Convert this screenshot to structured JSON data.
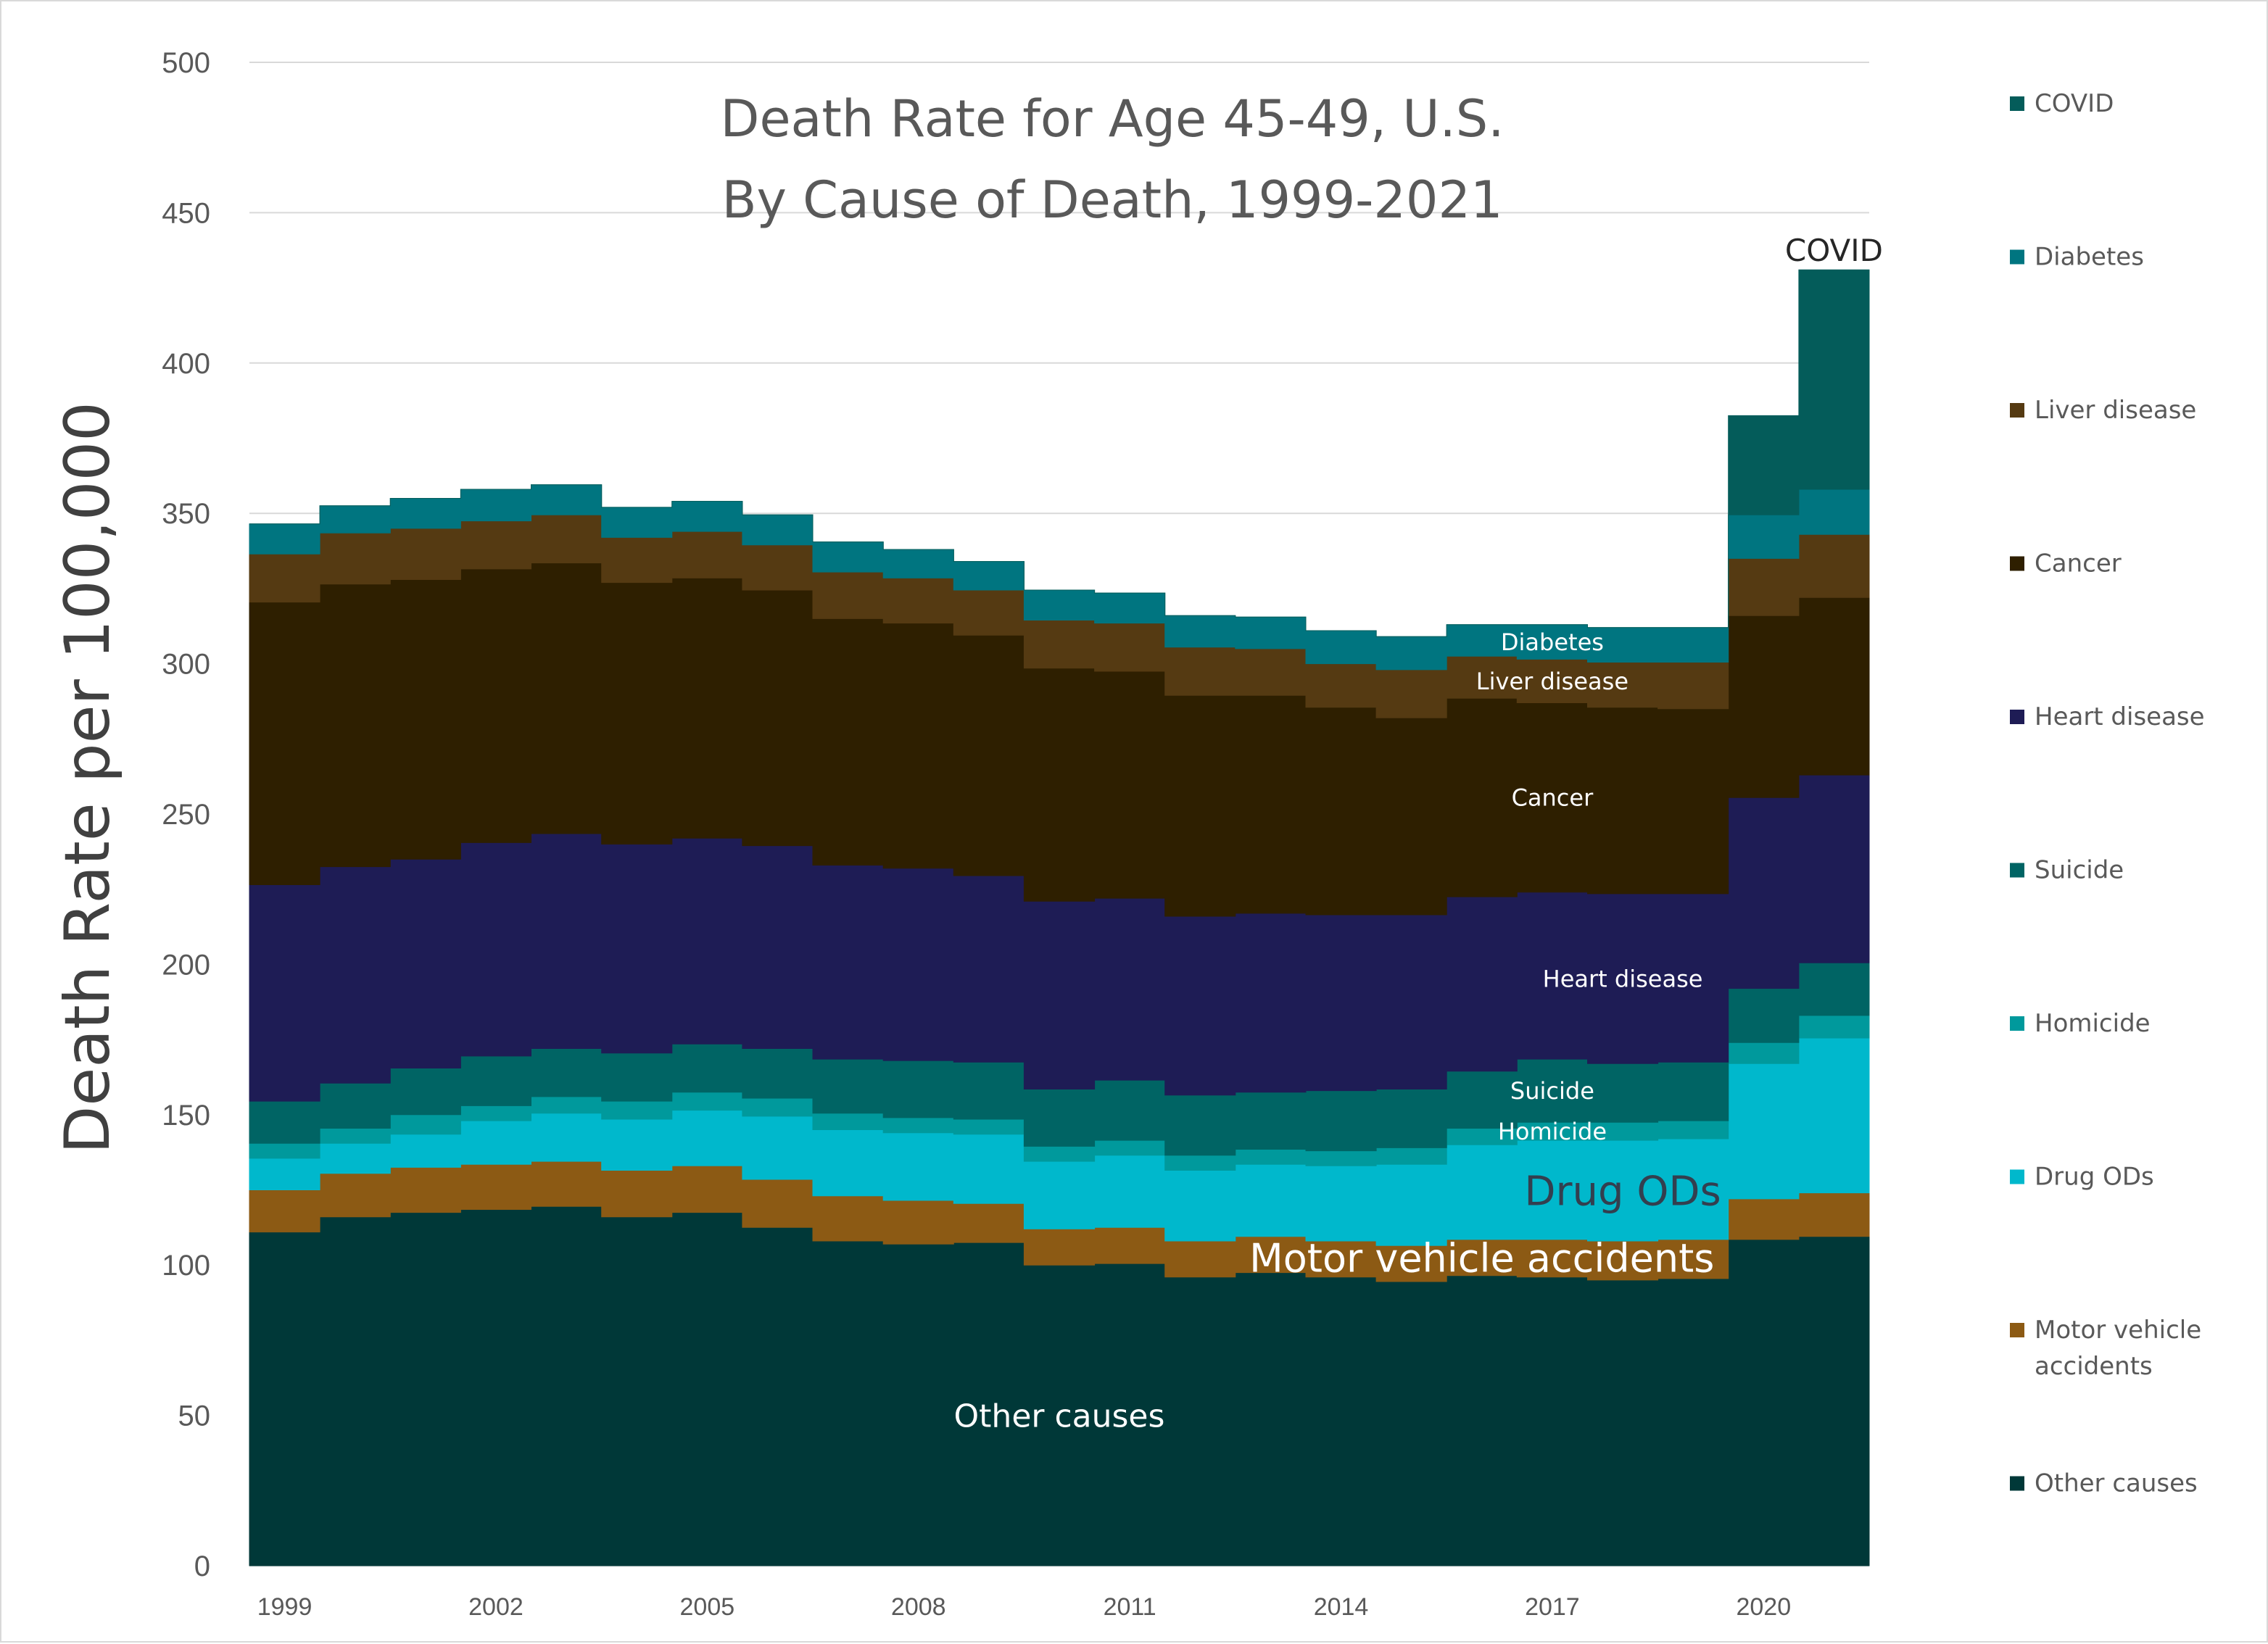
{
  "chart_data": {
    "type": "area",
    "stacked": true,
    "step": true,
    "title_lines": [
      "Death Rate for Age 45-49, U.S.",
      "By Cause of Death, 1999-2021"
    ],
    "ylabel": "Death Rate per 100,000",
    "ylim": [
      0,
      500
    ],
    "yticks": [
      0,
      50,
      100,
      150,
      200,
      250,
      300,
      350,
      400,
      450,
      500
    ],
    "x": [
      1999,
      2000,
      2001,
      2002,
      2003,
      2004,
      2005,
      2006,
      2007,
      2008,
      2009,
      2010,
      2011,
      2012,
      2013,
      2014,
      2015,
      2016,
      2017,
      2018,
      2019,
      2020,
      2021
    ],
    "xtick_labels": [
      "1999",
      "2002",
      "2005",
      "2008",
      "2011",
      "2014",
      "2017",
      "2020"
    ],
    "grid": true,
    "legend_position": "right",
    "series": [
      {
        "name": "Other causes",
        "color": "#003838",
        "values": [
          111,
          116,
          117.5,
          118.5,
          119.5,
          116,
          117.5,
          112.5,
          108,
          107,
          107.5,
          100,
          100.5,
          96,
          97.5,
          96,
          94.5,
          96.5,
          96,
          95,
          95.5,
          108.5,
          109.5
        ]
      },
      {
        "name": "Motor vehicle accidents",
        "color": "#8c5a14",
        "values": [
          14,
          14.5,
          15,
          15,
          15,
          15.5,
          15.5,
          16,
          15,
          14.5,
          13,
          12,
          12,
          12,
          12,
          12,
          12,
          12,
          12.5,
          13,
          13,
          13.5,
          14.5
        ]
      },
      {
        "name": "Drug ODs",
        "color": "#00b8cc",
        "values": [
          10.5,
          10,
          11,
          14.5,
          16,
          17,
          18.5,
          21,
          22,
          22.5,
          23,
          22.5,
          24,
          23.5,
          24,
          25,
          27,
          31.5,
          33,
          33.5,
          33.5,
          45,
          51.5
        ]
      },
      {
        "name": "Homicide",
        "color": "#00999c",
        "values": [
          5,
          5,
          6.5,
          5,
          5.5,
          6,
          6,
          6,
          5.5,
          5,
          5,
          5,
          5,
          5,
          5,
          5,
          5.5,
          5.5,
          6,
          6,
          6,
          7,
          7.5
        ]
      },
      {
        "name": "Suicide",
        "color": "#006464",
        "values": [
          14,
          15,
          15.5,
          16.5,
          16,
          16,
          16,
          16.5,
          18,
          19,
          19,
          19,
          20,
          20,
          19,
          20,
          19.5,
          19,
          21,
          19.5,
          19.5,
          18,
          17.5
        ]
      },
      {
        "name": "Heart disease",
        "color": "#1e1c55",
        "values": [
          72,
          72,
          69.5,
          71,
          71.5,
          69.5,
          68.5,
          67.5,
          64.5,
          64,
          62,
          62.5,
          60.5,
          59.5,
          59.5,
          58.5,
          58,
          58,
          55.5,
          56.5,
          56,
          63.5,
          62.5
        ]
      },
      {
        "name": "Cancer",
        "color": "#2e1f00",
        "values": [
          94,
          94,
          93,
          91,
          90,
          87,
          86.5,
          85,
          82,
          81.5,
          80,
          77.5,
          75.5,
          73.5,
          72.5,
          69,
          65.5,
          66,
          63,
          62,
          61.5,
          60.5,
          59
        ]
      },
      {
        "name": "Liver disease",
        "color": "#553a12",
        "values": [
          16,
          17,
          17,
          16,
          16,
          15,
          15.5,
          15,
          15.5,
          15,
          15,
          16,
          16,
          16,
          15.5,
          14.5,
          16,
          14,
          14.5,
          15,
          15.5,
          19,
          21
        ]
      },
      {
        "name": "Diabetes",
        "color": "#007580",
        "values": [
          10,
          9,
          10,
          10.5,
          10,
          10,
          10,
          10,
          10,
          9.5,
          9.5,
          10,
          10,
          10.5,
          10.5,
          11,
          11,
          10.5,
          11.5,
          11.5,
          11.5,
          14.5,
          15
        ]
      },
      {
        "name": "COVID",
        "color": "#045c5a",
        "values": [
          0,
          0,
          0,
          0,
          0,
          0,
          0,
          0,
          0,
          0,
          0,
          0,
          0,
          0,
          0,
          0,
          0,
          0,
          0,
          0,
          0,
          33,
          73
        ]
      }
    ],
    "in_chart_labels": [
      {
        "text": "COVID",
        "series": "COVID",
        "year": 2021,
        "placement": "above-top",
        "color": "#262626",
        "size": 42
      },
      {
        "text": "Diabetes",
        "series": "Diabetes",
        "year": 2017,
        "size": 32
      },
      {
        "text": "Liver disease",
        "series": "Liver disease",
        "year": 2017,
        "size": 32
      },
      {
        "text": "Cancer",
        "series": "Cancer",
        "year": 2017,
        "size": 32
      },
      {
        "text": "Heart disease",
        "series": "Heart disease",
        "year": 2018,
        "size": 32
      },
      {
        "text": "Suicide",
        "series": "Suicide",
        "year": 2017,
        "size": 32
      },
      {
        "text": "Homicide",
        "series": "Homicide",
        "year": 2017,
        "size": 32
      },
      {
        "text": "Drug ODs",
        "series": "Drug ODs",
        "year": 2018,
        "color": "#333f4f",
        "size": 56
      },
      {
        "text": "Motor vehicle accidents",
        "series": "Motor vehicle accidents",
        "year": 2016,
        "size": 54
      },
      {
        "text": "Other causes",
        "series": "Other causes",
        "year": 2010,
        "value": 50,
        "size": 44
      }
    ],
    "legend_order": [
      "COVID",
      "Diabetes",
      "Liver disease",
      "Cancer",
      "Heart disease",
      "Suicide",
      "Homicide",
      "Drug ODs",
      "Motor vehicle accidents",
      "Other causes"
    ],
    "legend_labels": {
      "Motor vehicle accidents": [
        "Motor vehicle",
        "accidents"
      ]
    }
  }
}
